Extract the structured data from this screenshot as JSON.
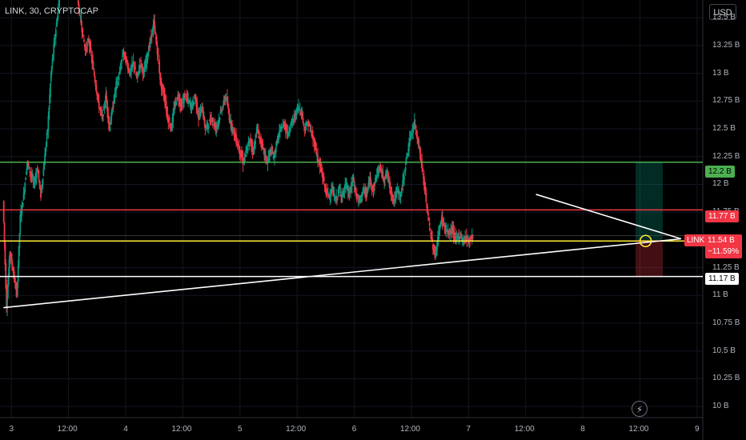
{
  "header": {
    "symbol_label": "LINK, 30, CRYPTOCAP",
    "currency_button": "USD"
  },
  "chart_data": {
    "type": "candlestick",
    "symbol": "LINK",
    "interval": "30",
    "source": "CRYPTOCAP",
    "y_unit": "market cap (B USD)",
    "y_ticks": [
      "13.5 B",
      "13.25 B",
      "13 B",
      "12.75 B",
      "12.5 B",
      "12.25 B",
      "12 B",
      "11.75 B",
      "11.25 B",
      "11 B",
      "10.75 B",
      "10.5 B",
      "10.25 B",
      "10 B"
    ],
    "y_tick_values": [
      13.5,
      13.25,
      13,
      12.75,
      12.5,
      12.25,
      12,
      11.75,
      11.25,
      11,
      10.75,
      10.5,
      10.25,
      10
    ],
    "x_ticks": [
      "3",
      "12:00",
      "4",
      "12:00",
      "5",
      "12:00",
      "6",
      "12:00",
      "7",
      "12:00",
      "8",
      "12:00",
      "9"
    ],
    "x_tick_days": [
      3,
      3.5,
      4,
      4.5,
      5,
      5.5,
      6,
      6.5,
      7,
      7.5,
      8,
      8.5,
      9
    ],
    "xlim_days": [
      2.9,
      9.05
    ],
    "ylim": [
      9.9,
      13.66
    ],
    "price_path": [
      [
        2.93,
        11.85
      ],
      [
        2.96,
        10.9
      ],
      [
        2.99,
        11.4
      ],
      [
        3.02,
        11.2
      ],
      [
        3.05,
        11.0
      ],
      [
        3.08,
        11.7
      ],
      [
        3.11,
        11.9
      ],
      [
        3.14,
        12.2
      ],
      [
        3.17,
        12.1
      ],
      [
        3.2,
        12.0
      ],
      [
        3.23,
        12.15
      ],
      [
        3.26,
        11.9
      ],
      [
        3.29,
        12.2
      ],
      [
        3.32,
        12.5
      ],
      [
        3.35,
        13.0
      ],
      [
        3.38,
        13.3
      ],
      [
        3.41,
        13.55
      ],
      [
        3.44,
        13.9
      ],
      [
        3.47,
        13.8
      ],
      [
        3.5,
        13.95
      ],
      [
        3.53,
        13.7
      ],
      [
        3.56,
        13.9
      ],
      [
        3.59,
        13.6
      ],
      [
        3.62,
        13.4
      ],
      [
        3.65,
        13.2
      ],
      [
        3.68,
        13.3
      ],
      [
        3.71,
        13.1
      ],
      [
        3.74,
        12.9
      ],
      [
        3.77,
        12.7
      ],
      [
        3.8,
        12.6
      ],
      [
        3.83,
        12.8
      ],
      [
        3.86,
        12.5
      ],
      [
        3.89,
        12.7
      ],
      [
        3.92,
        12.9
      ],
      [
        3.95,
        13.0
      ],
      [
        3.98,
        13.2
      ],
      [
        4.01,
        13.1
      ],
      [
        4.04,
        13.0
      ],
      [
        4.07,
        13.1
      ],
      [
        4.1,
        12.95
      ],
      [
        4.13,
        13.1
      ],
      [
        4.16,
        13.0
      ],
      [
        4.19,
        13.15
      ],
      [
        4.22,
        13.3
      ],
      [
        4.25,
        13.45
      ],
      [
        4.28,
        13.2
      ],
      [
        4.31,
        12.9
      ],
      [
        4.34,
        12.8
      ],
      [
        4.37,
        12.6
      ],
      [
        4.4,
        12.5
      ],
      [
        4.43,
        12.7
      ],
      [
        4.46,
        12.8
      ],
      [
        4.49,
        12.7
      ],
      [
        4.52,
        12.8
      ],
      [
        4.55,
        12.75
      ],
      [
        4.58,
        12.7
      ],
      [
        4.61,
        12.8
      ],
      [
        4.64,
        12.6
      ],
      [
        4.67,
        12.7
      ],
      [
        4.7,
        12.5
      ],
      [
        4.73,
        12.55
      ],
      [
        4.76,
        12.6
      ],
      [
        4.79,
        12.5
      ],
      [
        4.82,
        12.6
      ],
      [
        4.85,
        12.7
      ],
      [
        4.88,
        12.8
      ],
      [
        4.91,
        12.6
      ],
      [
        4.94,
        12.5
      ],
      [
        4.97,
        12.4
      ],
      [
        5.0,
        12.3
      ],
      [
        5.03,
        12.2
      ],
      [
        5.06,
        12.3
      ],
      [
        5.09,
        12.4
      ],
      [
        5.12,
        12.3
      ],
      [
        5.15,
        12.5
      ],
      [
        5.18,
        12.4
      ],
      [
        5.21,
        12.3
      ],
      [
        5.24,
        12.2
      ],
      [
        5.27,
        12.3
      ],
      [
        5.3,
        12.25
      ],
      [
        5.33,
        12.4
      ],
      [
        5.36,
        12.5
      ],
      [
        5.39,
        12.55
      ],
      [
        5.42,
        12.45
      ],
      [
        5.45,
        12.55
      ],
      [
        5.48,
        12.6
      ],
      [
        5.51,
        12.7
      ],
      [
        5.54,
        12.65
      ],
      [
        5.57,
        12.5
      ],
      [
        5.6,
        12.55
      ],
      [
        5.63,
        12.45
      ],
      [
        5.66,
        12.35
      ],
      [
        5.69,
        12.2
      ],
      [
        5.72,
        12.1
      ],
      [
        5.75,
        11.95
      ],
      [
        5.78,
        11.9
      ],
      [
        5.81,
        11.95
      ],
      [
        5.84,
        11.85
      ],
      [
        5.87,
        11.95
      ],
      [
        5.9,
        11.9
      ],
      [
        5.93,
        12.0
      ],
      [
        5.96,
        11.9
      ],
      [
        5.99,
        12.05
      ],
      [
        6.02,
        11.9
      ],
      [
        6.05,
        11.85
      ],
      [
        6.08,
        11.95
      ],
      [
        6.11,
        11.9
      ],
      [
        6.14,
        12.05
      ],
      [
        6.17,
        11.95
      ],
      [
        6.2,
        12.1
      ],
      [
        6.23,
        12.15
      ],
      [
        6.26,
        12.05
      ],
      [
        6.29,
        12.1
      ],
      [
        6.32,
        11.95
      ],
      [
        6.35,
        11.85
      ],
      [
        6.38,
        11.95
      ],
      [
        6.41,
        11.9
      ],
      [
        6.44,
        12.1
      ],
      [
        6.47,
        12.3
      ],
      [
        6.5,
        12.45
      ],
      [
        6.53,
        12.55
      ],
      [
        6.56,
        12.4
      ],
      [
        6.59,
        12.2
      ],
      [
        6.62,
        11.95
      ],
      [
        6.65,
        11.7
      ],
      [
        6.68,
        11.5
      ],
      [
        6.71,
        11.35
      ],
      [
        6.74,
        11.55
      ],
      [
        6.77,
        11.7
      ],
      [
        6.8,
        11.6
      ],
      [
        6.83,
        11.55
      ],
      [
        6.86,
        11.6
      ],
      [
        6.89,
        11.5
      ],
      [
        6.92,
        11.55
      ],
      [
        6.95,
        11.5
      ],
      [
        6.98,
        11.52
      ],
      [
        7.01,
        11.5
      ],
      [
        7.04,
        11.54
      ]
    ],
    "horizontal_levels": [
      {
        "label": "12.2 B",
        "value": 12.2,
        "color": "#4caf50"
      },
      {
        "label": "11.77 B",
        "value": 11.77,
        "color": "#f23645"
      },
      {
        "label": "11.17 B",
        "value": 11.17,
        "color": "#ffffff"
      }
    ],
    "support_level": {
      "value": 11.49,
      "color": "#ffeb3b"
    },
    "current": {
      "symbol_tag": "LINK",
      "value_label": "11.54 B",
      "change_label": "−11.59%",
      "value": 11.54,
      "color": "#f23645"
    },
    "colors": {
      "up": "#089981",
      "down": "#f23645",
      "background": "#000000",
      "text": "#b2b5be"
    }
  }
}
